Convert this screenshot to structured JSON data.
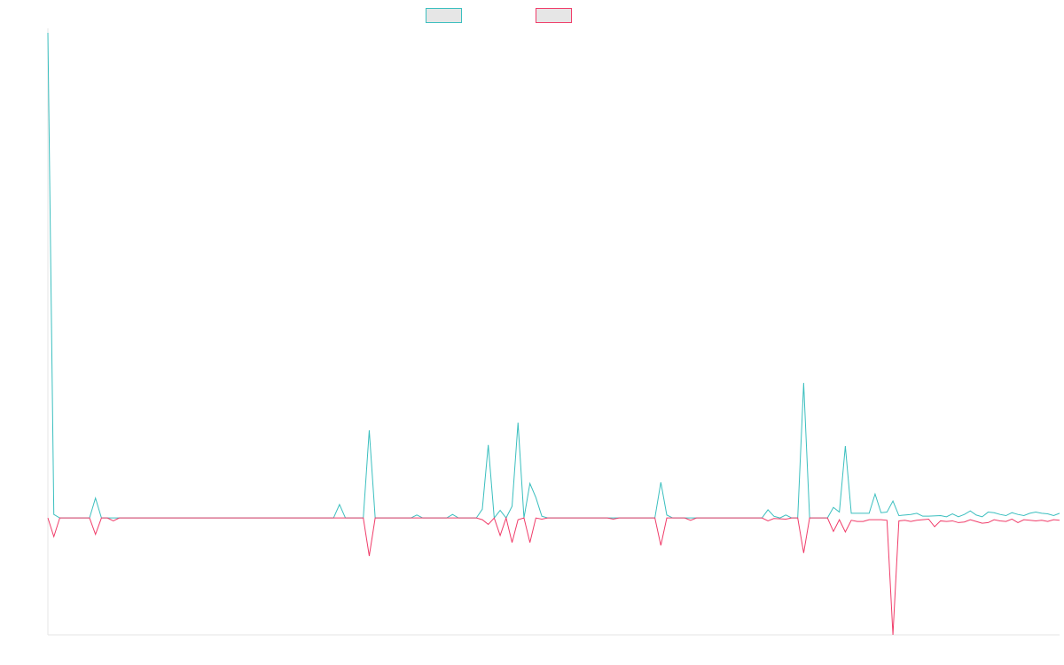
{
  "chart_data": {
    "type": "line",
    "title": "",
    "xlabel": "",
    "ylabel": "",
    "show_tick_labels": false,
    "grid": false,
    "legend_position": "top-center",
    "colors": {
      "series_a": "#3bbfbf",
      "series_b": "#f03d6a",
      "legend_fill": "#e6e6e6",
      "axis": "#e6e6e6"
    },
    "ylim": [
      -20,
      83
    ],
    "x_count": 170,
    "baseline": 0,
    "series": [
      {
        "name": "",
        "legend_label": "",
        "color_key": "series_a",
        "base": 0,
        "points": [
          [
            0,
            83
          ],
          [
            1,
            0.6
          ],
          [
            2,
            0
          ],
          [
            7,
            0
          ],
          [
            8,
            3.4
          ],
          [
            9,
            0
          ],
          [
            48,
            0
          ],
          [
            49,
            2.3
          ],
          [
            50,
            0
          ],
          [
            53,
            0
          ],
          [
            54,
            15
          ],
          [
            55,
            0
          ],
          [
            61,
            0
          ],
          [
            62,
            0.5
          ],
          [
            63,
            0
          ],
          [
            67,
            0
          ],
          [
            68,
            0.6
          ],
          [
            69,
            0
          ],
          [
            72,
            0
          ],
          [
            73,
            1.5
          ],
          [
            74,
            12.5
          ],
          [
            75,
            0
          ],
          [
            76,
            1.3
          ],
          [
            77,
            0
          ],
          [
            78,
            2
          ],
          [
            79,
            16.3
          ],
          [
            80,
            0
          ],
          [
            81,
            5.9
          ],
          [
            82,
            3.5
          ],
          [
            83,
            0.3
          ],
          [
            84,
            0
          ],
          [
            102,
            0
          ],
          [
            103,
            6.1
          ],
          [
            104,
            0.5
          ],
          [
            105,
            0
          ],
          [
            120,
            0
          ],
          [
            121,
            1.4
          ],
          [
            122,
            0.3
          ],
          [
            123,
            0
          ],
          [
            124,
            0.5
          ],
          [
            125,
            0
          ],
          [
            126,
            0
          ],
          [
            127,
            23.1
          ],
          [
            128,
            0
          ],
          [
            131,
            0
          ],
          [
            132,
            1.8
          ],
          [
            133,
            1
          ],
          [
            134,
            12.3
          ],
          [
            135,
            0.8
          ],
          [
            136,
            0.8
          ],
          [
            138,
            0.8
          ],
          [
            139,
            4.1
          ],
          [
            140,
            0.9
          ],
          [
            141,
            1
          ],
          [
            142,
            2.9
          ],
          [
            143,
            0.4
          ],
          [
            145,
            0.6
          ],
          [
            146,
            0.8
          ],
          [
            147,
            0.3
          ],
          [
            148,
            0.3
          ],
          [
            150,
            0.4
          ],
          [
            151,
            0.2
          ],
          [
            152,
            0.7
          ],
          [
            153,
            0.2
          ],
          [
            154,
            0.6
          ],
          [
            155,
            1.2
          ],
          [
            156,
            0.5
          ],
          [
            157,
            0.2
          ],
          [
            158,
            1
          ],
          [
            159,
            0.9
          ],
          [
            160,
            0.6
          ],
          [
            161,
            0.4
          ],
          [
            162,
            0.9
          ],
          [
            163,
            0.6
          ],
          [
            164,
            0.4
          ],
          [
            165,
            0.8
          ],
          [
            166,
            1
          ],
          [
            167,
            0.8
          ],
          [
            168,
            0.7
          ],
          [
            169,
            0.4
          ],
          [
            170,
            0.8
          ]
        ]
      },
      {
        "name": "",
        "legend_label": "",
        "color_key": "series_b",
        "base": 0,
        "points": [
          [
            0,
            0
          ],
          [
            1,
            -3.2
          ],
          [
            2,
            0
          ],
          [
            7,
            0
          ],
          [
            8,
            -2.8
          ],
          [
            9,
            0
          ],
          [
            10,
            0
          ],
          [
            11,
            -0.5
          ],
          [
            12,
            0
          ],
          [
            48,
            0
          ],
          [
            49,
            0
          ],
          [
            50,
            0
          ],
          [
            53,
            0
          ],
          [
            54,
            -6.5
          ],
          [
            55,
            0
          ],
          [
            72,
            0
          ],
          [
            73,
            -0.3
          ],
          [
            74,
            -1.1
          ],
          [
            75,
            0
          ],
          [
            76,
            -3
          ],
          [
            77,
            0
          ],
          [
            78,
            -4.2
          ],
          [
            79,
            -0.3
          ],
          [
            80,
            0
          ],
          [
            81,
            -4.2
          ],
          [
            82,
            0
          ],
          [
            83,
            -0.2
          ],
          [
            84,
            0
          ],
          [
            94,
            0
          ],
          [
            95,
            -0.2
          ],
          [
            96,
            0
          ],
          [
            102,
            0
          ],
          [
            103,
            -4.7
          ],
          [
            104,
            0
          ],
          [
            107,
            0
          ],
          [
            108,
            -0.4
          ],
          [
            109,
            0
          ],
          [
            120,
            0
          ],
          [
            121,
            -0.5
          ],
          [
            122,
            -0.1
          ],
          [
            124,
            -0.2
          ],
          [
            125,
            0
          ],
          [
            126,
            0
          ],
          [
            127,
            -6
          ],
          [
            128,
            0
          ],
          [
            131,
            0
          ],
          [
            132,
            -2.3
          ],
          [
            133,
            -0.3
          ],
          [
            134,
            -2.4
          ],
          [
            135,
            -0.4
          ],
          [
            136,
            -0.6
          ],
          [
            137,
            -0.6
          ],
          [
            138,
            -0.3
          ],
          [
            139,
            -0.3
          ],
          [
            140,
            -0.3
          ],
          [
            141,
            -0.4
          ],
          [
            142,
            -20
          ],
          [
            143,
            -0.5
          ],
          [
            144,
            -0.4
          ],
          [
            145,
            -0.6
          ],
          [
            146,
            -0.4
          ],
          [
            147,
            -0.3
          ],
          [
            148,
            -0.2
          ],
          [
            149,
            -1.5
          ],
          [
            150,
            -0.5
          ],
          [
            151,
            -0.6
          ],
          [
            152,
            -0.5
          ],
          [
            153,
            -0.8
          ],
          [
            154,
            -0.7
          ],
          [
            155,
            -0.3
          ],
          [
            156,
            -0.6
          ],
          [
            157,
            -0.9
          ],
          [
            158,
            -0.8
          ],
          [
            159,
            -0.3
          ],
          [
            160,
            -0.5
          ],
          [
            161,
            -0.6
          ],
          [
            162,
            -0.2
          ],
          [
            163,
            -0.8
          ],
          [
            164,
            -0.3
          ],
          [
            165,
            -0.4
          ],
          [
            166,
            -0.5
          ],
          [
            167,
            -0.4
          ],
          [
            168,
            -0.6
          ],
          [
            169,
            -0.3
          ],
          [
            170,
            -0.4
          ]
        ]
      }
    ]
  }
}
